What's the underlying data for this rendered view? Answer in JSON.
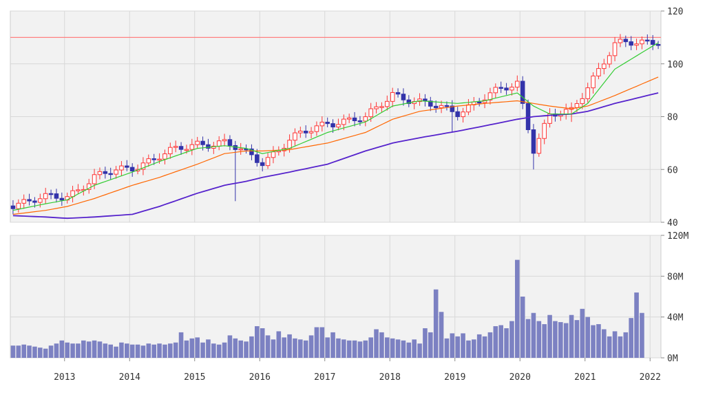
{
  "chart_data": [
    {
      "type": "candlestick",
      "title": "",
      "ylim": [
        40,
        120
      ],
      "y_ticks": [
        "120",
        "100",
        "80",
        "60",
        "40"
      ],
      "x_ticks": [
        "2013",
        "2014",
        "2015",
        "2016",
        "2017",
        "2018",
        "2019",
        "2020",
        "2021",
        "2022"
      ],
      "xlim": [
        "2012-03",
        "2022-02"
      ],
      "reference_line": 110,
      "series": [
        {
          "name": "",
          "role": "candles",
          "up_color": "#ff3333",
          "down_color": "#3333aa"
        },
        {
          "name": "",
          "role": "ma_short",
          "color": "#33cc33"
        },
        {
          "name": "",
          "role": "ma_mid",
          "color": "#ff6600"
        },
        {
          "name": "",
          "role": "ma_long",
          "color": "#5522cc"
        }
      ],
      "anchors": [
        {
          "x": "2012-03",
          "close": 47,
          "ma_short": 44.5,
          "ma_mid": 43,
          "ma_long": 42.5
        },
        {
          "x": "2012-09",
          "close": 49,
          "ma_short": 47,
          "ma_mid": 44.5,
          "ma_long": 42
        },
        {
          "x": "2013-01",
          "close": 50,
          "ma_short": 48.5,
          "ma_mid": 46,
          "ma_long": 41.5
        },
        {
          "x": "2013-06",
          "close": 57,
          "ma_short": 54,
          "ma_mid": 49,
          "ma_long": 42
        },
        {
          "x": "2014-01",
          "close": 61,
          "ma_short": 59,
          "ma_mid": 54,
          "ma_long": 43
        },
        {
          "x": "2014-06",
          "close": 65,
          "ma_short": 63,
          "ma_mid": 57,
          "ma_long": 46
        },
        {
          "x": "2015-01",
          "close": 70,
          "ma_short": 68,
          "ma_mid": 62,
          "ma_long": 51
        },
        {
          "x": "2015-06",
          "close": 70,
          "ma_short": 69,
          "ma_mid": 66,
          "ma_long": 54
        },
        {
          "x": "2015-10",
          "close": 66,
          "ma_short": 68,
          "ma_mid": 67,
          "ma_long": 55.5
        },
        {
          "x": "2016-01",
          "close": 63,
          "ma_short": 66,
          "ma_mid": 67,
          "ma_long": 57
        },
        {
          "x": "2016-06",
          "close": 71,
          "ma_short": 68,
          "ma_mid": 67.5,
          "ma_long": 59
        },
        {
          "x": "2017-01",
          "close": 78,
          "ma_short": 74,
          "ma_mid": 70,
          "ma_long": 62
        },
        {
          "x": "2017-08",
          "close": 79,
          "ma_short": 78,
          "ma_mid": 74,
          "ma_long": 67
        },
        {
          "x": "2018-01",
          "close": 89,
          "ma_short": 84,
          "ma_mid": 79,
          "ma_long": 70
        },
        {
          "x": "2018-06",
          "close": 85,
          "ma_short": 86,
          "ma_mid": 82,
          "ma_long": 72
        },
        {
          "x": "2019-01",
          "close": 82,
          "ma_short": 85,
          "ma_mid": 84,
          "ma_long": 74.5
        },
        {
          "x": "2019-06",
          "close": 87,
          "ma_short": 86,
          "ma_mid": 85,
          "ma_long": 76.5
        },
        {
          "x": "2019-12",
          "close": 93,
          "ma_short": 89,
          "ma_mid": 86,
          "ma_long": 79
        },
        {
          "x": "2020-03",
          "close": 68,
          "ma_short": 84,
          "ma_mid": 85,
          "ma_long": 80
        },
        {
          "x": "2020-06",
          "close": 80,
          "ma_short": 81,
          "ma_mid": 84,
          "ma_long": 80.5
        },
        {
          "x": "2020-10",
          "close": 82,
          "ma_short": 81,
          "ma_mid": 83,
          "ma_long": 81
        },
        {
          "x": "2021-01",
          "close": 92,
          "ma_short": 85,
          "ma_mid": 84,
          "ma_long": 82
        },
        {
          "x": "2021-06",
          "close": 107,
          "ma_short": 98,
          "ma_mid": 88,
          "ma_long": 85
        },
        {
          "x": "2022-02",
          "close": 109,
          "ma_short": 108,
          "ma_mid": 95,
          "ma_long": 89
        }
      ],
      "shocks": [
        {
          "x": "2015-08",
          "low": 48
        },
        {
          "x": "2018-12",
          "low": 74
        },
        {
          "x": "2020-03",
          "low": 60
        },
        {
          "x": "2020-10",
          "low": 78
        }
      ]
    },
    {
      "type": "bar",
      "title": "",
      "ylim": [
        0,
        120
      ],
      "unit": "M",
      "y_ticks": [
        "120M",
        "80M",
        "40M",
        "0M"
      ],
      "x_ticks": [
        "2013",
        "2014",
        "2015",
        "2016",
        "2017",
        "2018",
        "2019",
        "2020",
        "2021",
        "2022"
      ],
      "color": "#7c81c2",
      "start": "2012-03",
      "values": [
        12,
        12,
        13,
        12,
        11,
        10,
        9,
        12,
        14,
        17,
        15,
        14,
        14,
        17,
        16,
        17,
        16,
        14,
        13,
        11,
        15,
        14,
        13,
        13,
        12,
        14,
        13,
        14,
        13,
        14,
        15,
        25,
        17,
        19,
        20,
        15,
        18,
        14,
        13,
        15,
        22,
        19,
        17,
        16,
        21,
        31,
        29,
        22,
        18,
        26,
        20,
        23,
        19,
        18,
        17,
        22,
        30,
        30,
        20,
        25,
        19,
        18,
        17,
        17,
        16,
        17,
        20,
        28,
        25,
        20,
        19,
        18,
        17,
        15,
        18,
        14,
        29,
        25,
        67,
        45,
        19,
        24,
        21,
        24,
        17,
        18,
        23,
        21,
        25,
        31,
        32,
        29,
        36,
        96,
        60,
        38,
        44,
        36,
        33,
        42,
        36,
        35,
        34,
        42,
        37,
        48,
        40,
        32,
        33,
        28,
        21,
        26,
        21,
        25,
        39,
        64,
        44
      ]
    }
  ]
}
